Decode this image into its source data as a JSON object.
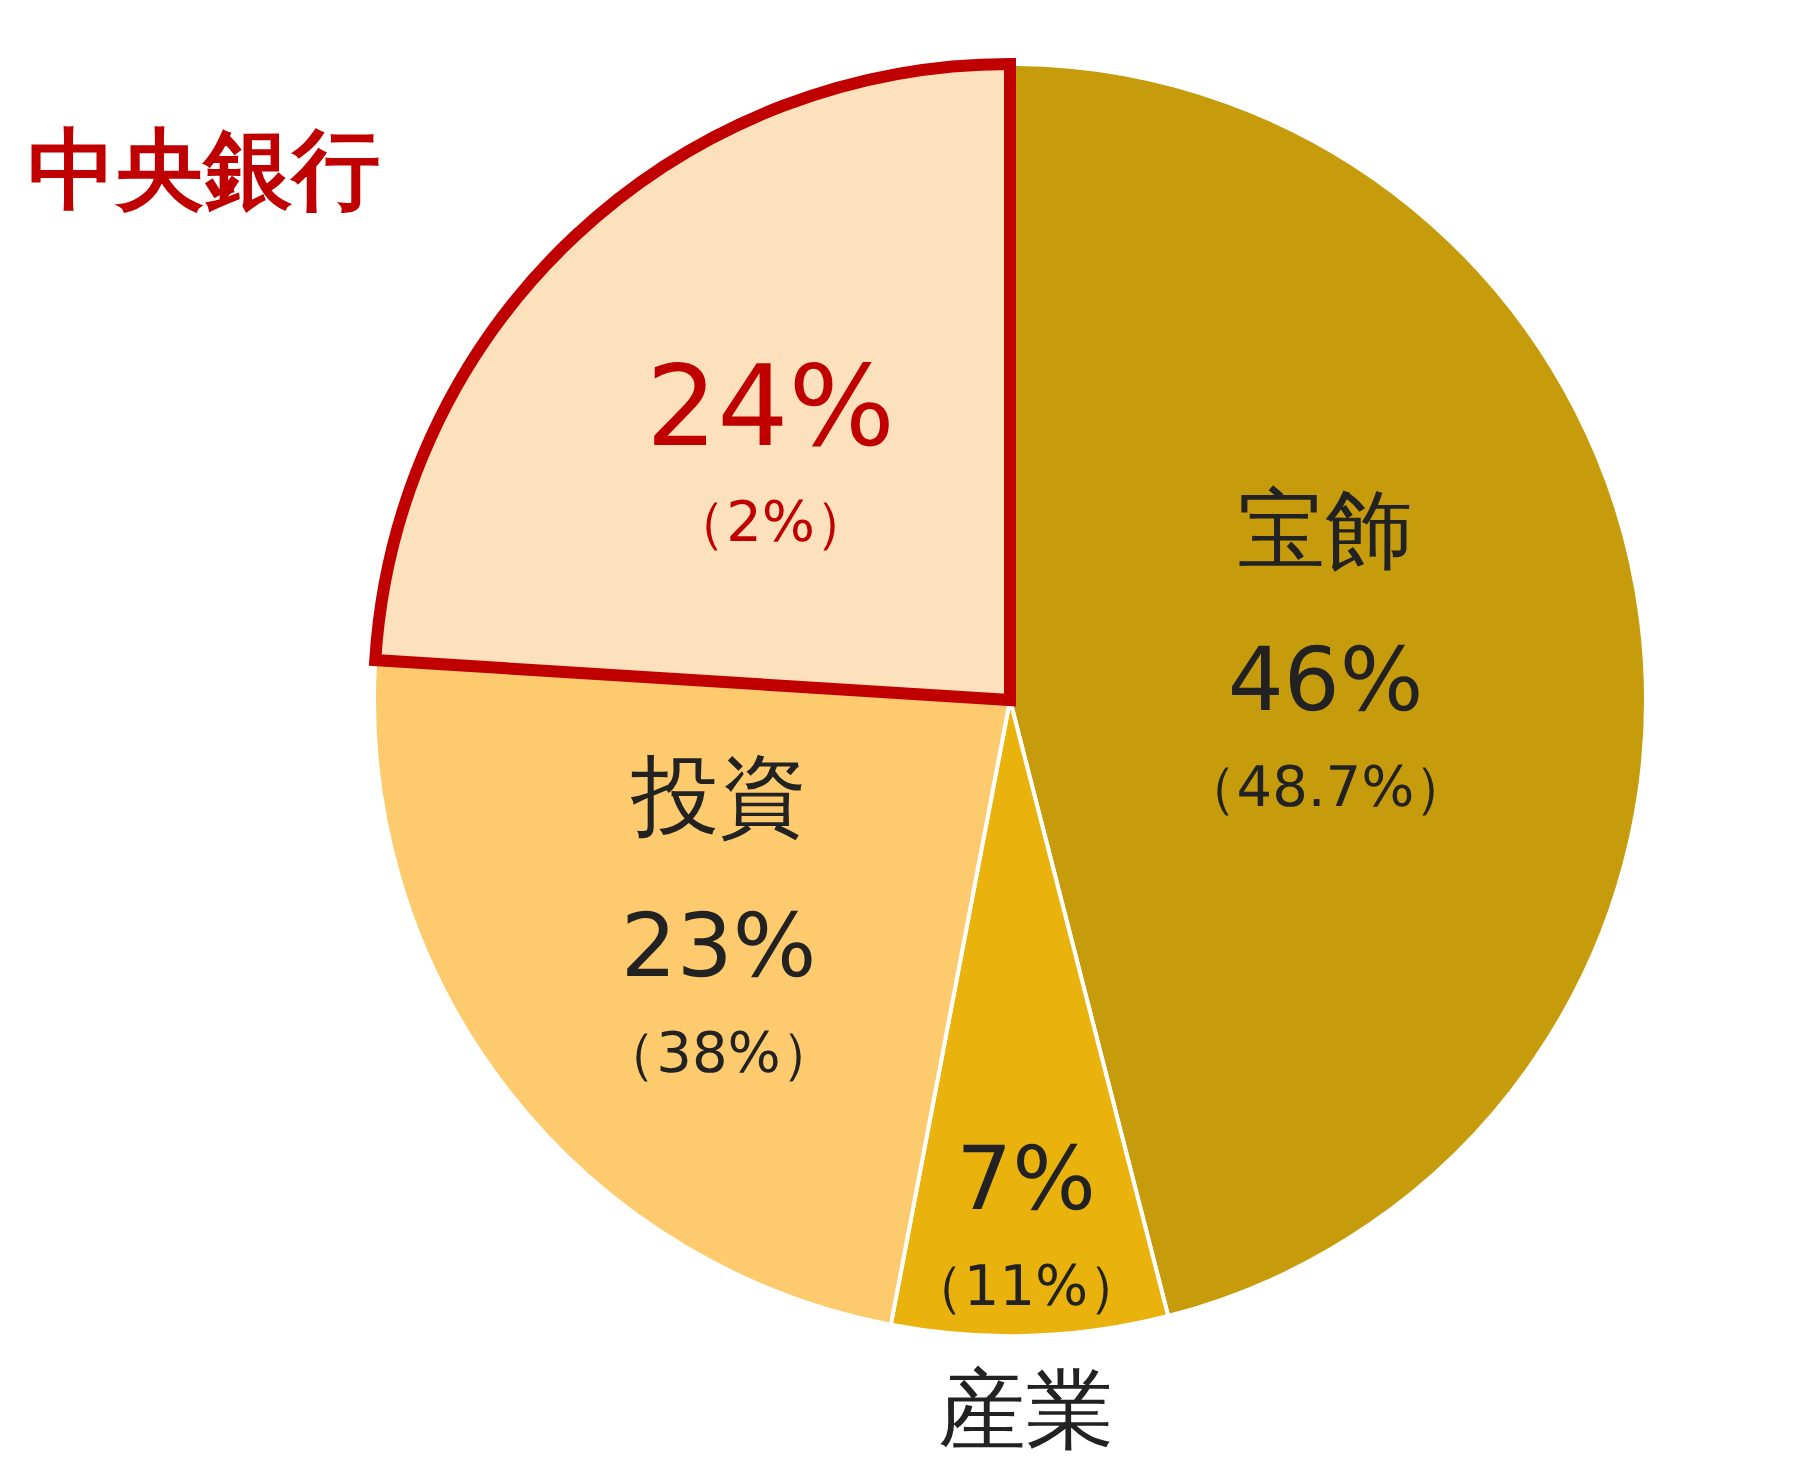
{
  "chart_data": {
    "type": "pie",
    "categories": [
      "宝飾",
      "産業",
      "投資",
      "中央銀行"
    ],
    "values": [
      46,
      7,
      23,
      24
    ],
    "colors": [
      "#c69c0c",
      "#e9b20c",
      "#fdca6e",
      "#fde1bc"
    ],
    "value_labels": [
      "46%",
      "7%",
      "23%",
      "24%"
    ],
    "annotations": [
      {
        "text": "（48.7%）",
        "x": "宝飾"
      },
      {
        "text": "（11%）",
        "x": "産業"
      },
      {
        "text": "（38%）",
        "x": "投資"
      },
      {
        "text": "（2%）",
        "x": "中央銀行"
      }
    ]
  }
}
